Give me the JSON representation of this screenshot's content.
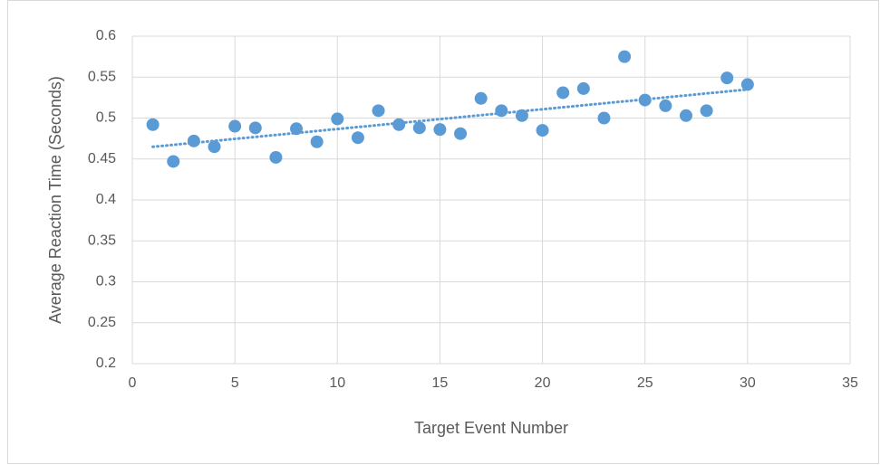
{
  "chart_data": {
    "type": "scatter",
    "x_label": "Target Event Number",
    "y_label": "Average Reaction Time (Seconds)",
    "x": [
      1,
      2,
      3,
      4,
      5,
      6,
      7,
      8,
      9,
      10,
      11,
      12,
      13,
      14,
      15,
      16,
      17,
      18,
      19,
      20,
      21,
      22,
      23,
      24,
      25,
      26,
      27,
      28,
      29,
      30
    ],
    "values": [
      0.492,
      0.447,
      0.472,
      0.465,
      0.49,
      0.488,
      0.452,
      0.487,
      0.471,
      0.499,
      0.476,
      0.509,
      0.492,
      0.488,
      0.486,
      0.481,
      0.524,
      0.509,
      0.503,
      0.485,
      0.531,
      0.536,
      0.5,
      0.575,
      0.522,
      0.515,
      0.503,
      0.509,
      0.549,
      0.541
    ],
    "color": "#5b9bd5",
    "trendline": "linear",
    "xlim": [
      0,
      35
    ],
    "xticks": [
      0,
      5,
      10,
      15,
      20,
      25,
      30,
      35
    ],
    "ylim": [
      0.2,
      0.6
    ],
    "yticks": [
      0.2,
      0.25,
      0.3,
      0.35,
      0.4,
      0.45,
      0.5,
      0.55,
      0.6
    ],
    "grid": true
  }
}
